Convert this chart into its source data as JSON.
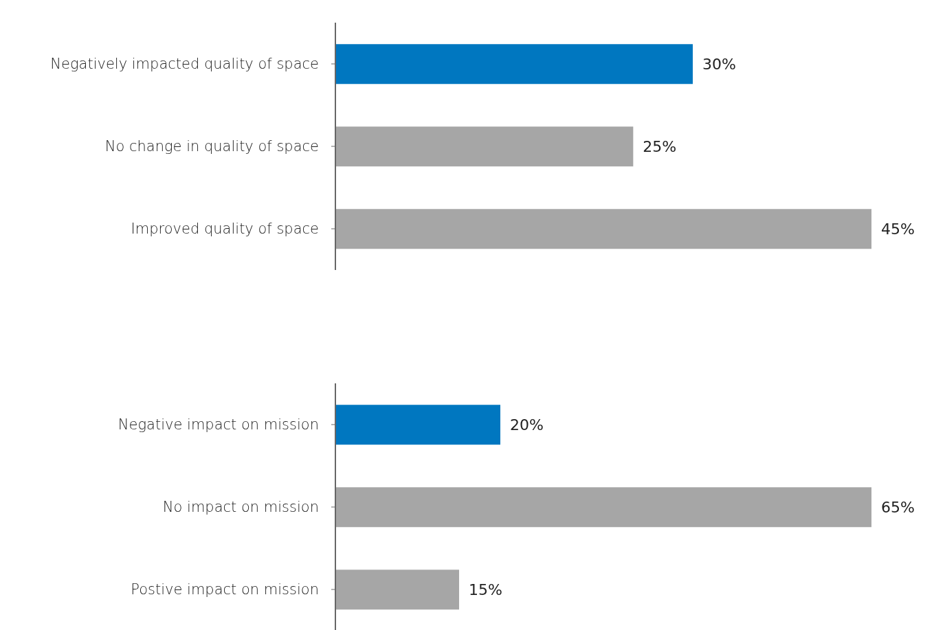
{
  "chart_data": [
    {
      "type": "bar",
      "orientation": "horizontal",
      "categories": [
        "Negatively impacted quality of space",
        "No change in quality of space",
        "Improved quality of space"
      ],
      "values": [
        30,
        25,
        45
      ],
      "value_labels": [
        "30%",
        "25%",
        "45%"
      ],
      "colors": [
        "#0077c0",
        "#a6a6a6",
        "#a6a6a6"
      ],
      "grid": false,
      "legend": false
    },
    {
      "type": "bar",
      "orientation": "horizontal",
      "categories": [
        "Negative impact on mission",
        "No impact on mission",
        "Postive impact on mission"
      ],
      "values": [
        20,
        65,
        15
      ],
      "value_labels": [
        "20%",
        "65%",
        "15%"
      ],
      "colors": [
        "#0077c0",
        "#a6a6a6",
        "#a6a6a6"
      ],
      "grid": false,
      "legend": false
    }
  ]
}
